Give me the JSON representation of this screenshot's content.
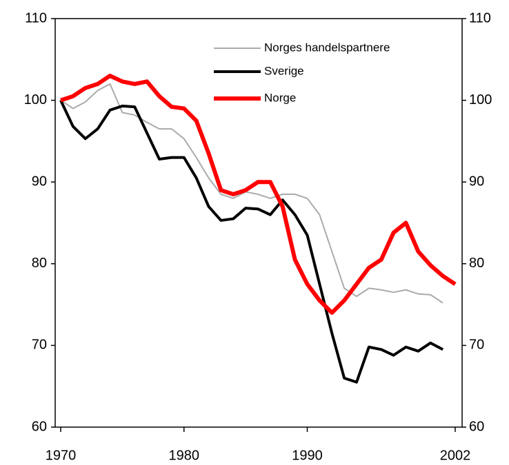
{
  "chart_data": {
    "type": "line",
    "x": [
      1970,
      1971,
      1972,
      1973,
      1974,
      1975,
      1976,
      1977,
      1978,
      1979,
      1980,
      1981,
      1982,
      1983,
      1984,
      1985,
      1986,
      1987,
      1988,
      1989,
      1990,
      1991,
      1992,
      1993,
      1994,
      1995,
      1996,
      1997,
      1998,
      1999,
      2000,
      2001,
      2002
    ],
    "series": [
      {
        "name": "Norges handelspartnere",
        "color": "#aaaaaa",
        "values": [
          100,
          99,
          99.8,
          101.2,
          102,
          98.5,
          98.2,
          97.3,
          96.5,
          96.5,
          95.3,
          93,
          90.5,
          88.5,
          88,
          88.8,
          88.5,
          88,
          88.5,
          88.5,
          88,
          86,
          81.5,
          77,
          76,
          77,
          76.8,
          76.5,
          76.8,
          76.3,
          76.2,
          75.2,
          null
        ]
      },
      {
        "name": "Sverige",
        "color": "#000000",
        "values": [
          100,
          96.8,
          95.3,
          96.5,
          98.8,
          99.3,
          99.2,
          96,
          92.8,
          93,
          93,
          90.5,
          87,
          85.3,
          85.5,
          86.8,
          86.7,
          86,
          87.8,
          86,
          83.5,
          77.5,
          71.5,
          66,
          65.5,
          69.8,
          69.5,
          68.8,
          69.8,
          69.3,
          70.3,
          69.5,
          null
        ]
      },
      {
        "name": "Norge",
        "color": "#ff0000",
        "values": [
          100,
          100.5,
          101.5,
          102,
          103,
          102.3,
          102,
          102.3,
          100.5,
          99.2,
          99,
          97.5,
          93.5,
          89,
          88.5,
          89,
          90,
          90,
          87,
          80.5,
          77.5,
          75.5,
          74,
          75.5,
          77.5,
          79.5,
          80.5,
          83.8,
          85,
          81.5,
          79.8,
          78.5,
          77.5
        ]
      }
    ],
    "xlim": [
      1970,
      2002
    ],
    "xticks": [
      1970,
      1980,
      1990,
      2002
    ],
    "ylim": [
      60,
      110
    ],
    "yticks": [
      60,
      70,
      80,
      90,
      100,
      110
    ],
    "y2lim": [
      60,
      110
    ],
    "y2ticks": [
      60,
      70,
      80,
      90,
      100,
      110
    ]
  }
}
